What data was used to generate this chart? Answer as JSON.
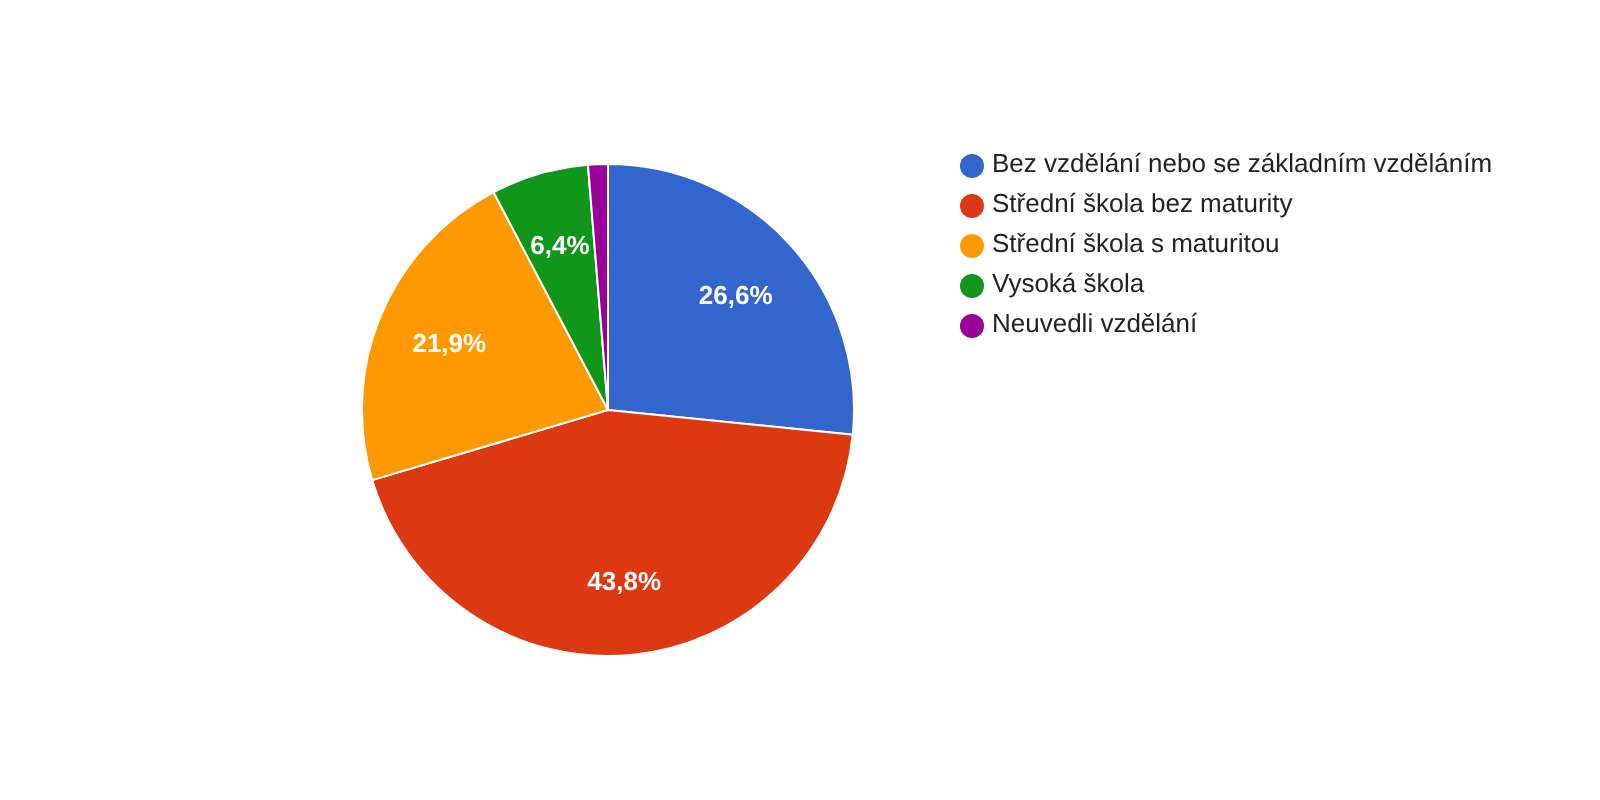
{
  "chart_data": {
    "type": "pie",
    "categories": [
      "Bez vzdělání nebo se základním vzděláním",
      "Střední škola bez maturity",
      "Střední škola s maturitou",
      "Vysoká škola",
      "Neuvedli vzdělání"
    ],
    "values": [
      26.6,
      43.8,
      21.9,
      6.4,
      1.3
    ],
    "colors": [
      "#3366cc",
      "#dc3912",
      "#ff9900",
      "#109618",
      "#990099"
    ],
    "value_labels": [
      "26,6%",
      "43,8%",
      "21,9%",
      "6,4%",
      null
    ],
    "legend": "right"
  }
}
